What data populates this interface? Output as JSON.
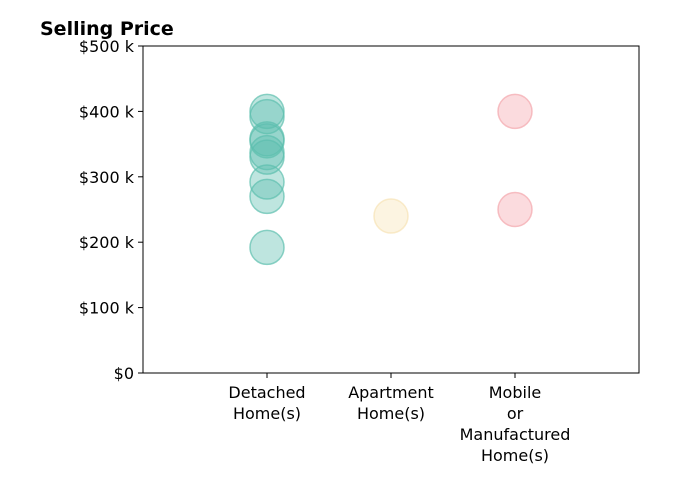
{
  "chart_data": {
    "type": "scatter",
    "title": "Selling Price",
    "xlabel": "",
    "ylabel": "",
    "categories": [
      [
        "Detached",
        "Home(s)"
      ],
      [
        "Apartment",
        "Home(s)"
      ],
      [
        "Mobile",
        "or",
        "Manufactured",
        "Home(s)"
      ]
    ],
    "y_ticks": [
      "$0",
      "$100 k",
      "$200 k",
      "$300 k",
      "$400 k",
      "$500 k"
    ],
    "y_tick_values": [
      0,
      100000,
      200000,
      300000,
      400000,
      500000
    ],
    "ylim": [
      0,
      500000
    ],
    "grid": false,
    "series": [
      {
        "category_index": 0,
        "color": "#5cbfae",
        "values": [
          192000,
          270000,
          292000,
          330000,
          337000,
          355000,
          358000,
          392000,
          400000
        ]
      },
      {
        "category_index": 1,
        "color": "#f7e3b5",
        "values": [
          240000
        ]
      },
      {
        "category_index": 2,
        "color": "#f4a6ad",
        "values": [
          250000,
          400000
        ]
      }
    ]
  }
}
